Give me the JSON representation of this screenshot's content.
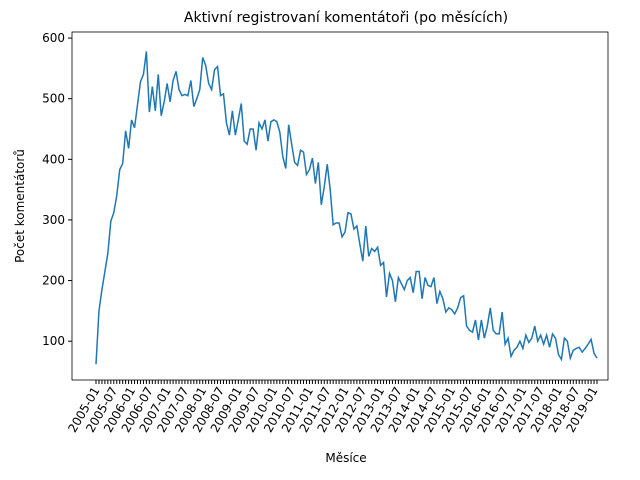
{
  "chart_data": {
    "type": "line",
    "title": "Aktivní registrovaní komentátoři (po měsících)",
    "x_label": "Měsíce",
    "y_label": "Počet komentátorů",
    "categories": [
      "2005-01",
      null,
      null,
      null,
      null,
      null,
      "2005-07",
      null,
      null,
      null,
      null,
      null,
      "2006-01",
      null,
      null,
      null,
      null,
      null,
      "2006-07",
      null,
      null,
      null,
      null,
      null,
      "2007-01",
      null,
      null,
      null,
      null,
      null,
      "2007-07",
      null,
      null,
      null,
      null,
      null,
      "2008-01",
      null,
      null,
      null,
      null,
      null,
      "2008-07",
      null,
      null,
      null,
      null,
      null,
      "2009-01",
      null,
      null,
      null,
      null,
      null,
      "2009-07",
      null,
      null,
      null,
      null,
      null,
      "2010-01",
      null,
      null,
      null,
      null,
      null,
      "2010-07",
      null,
      null,
      null,
      null,
      null,
      "2011-01",
      null,
      null,
      null,
      null,
      null,
      "2011-07",
      null,
      null,
      null,
      null,
      null,
      "2012-01",
      null,
      null,
      null,
      null,
      null,
      "2012-07",
      null,
      null,
      null,
      null,
      null,
      "2013-01",
      null,
      null,
      null,
      null,
      null,
      "2013-07",
      null,
      null,
      null,
      null,
      null,
      "2014-01",
      null,
      null,
      null,
      null,
      null,
      "2014-07",
      null,
      null,
      null,
      null,
      null,
      "2015-01",
      null,
      null,
      null,
      null,
      null,
      "2015-07",
      null,
      null,
      null,
      null,
      null,
      "2016-01",
      null,
      null,
      null,
      null,
      null,
      "2016-07",
      null,
      null,
      null,
      null,
      null,
      "2017-01",
      null,
      null,
      null,
      null,
      null,
      "2017-07",
      null,
      null,
      null,
      null,
      null,
      "2018-01",
      null,
      null,
      null,
      null,
      null,
      "2018-07",
      null,
      null,
      null,
      null,
      null,
      "2019-01",
      null
    ],
    "values": [
      62,
      150,
      185,
      215,
      245,
      298,
      312,
      340,
      383,
      393,
      447,
      418,
      465,
      452,
      490,
      528,
      540,
      578,
      478,
      520,
      480,
      540,
      472,
      495,
      525,
      495,
      530,
      545,
      515,
      505,
      507,
      505,
      530,
      487,
      500,
      515,
      568,
      555,
      525,
      515,
      548,
      553,
      505,
      508,
      460,
      440,
      480,
      440,
      465,
      492,
      430,
      425,
      450,
      450,
      415,
      460,
      450,
      465,
      430,
      462,
      465,
      462,
      445,
      405,
      385,
      457,
      425,
      395,
      390,
      415,
      412,
      375,
      383,
      402,
      360,
      395,
      325,
      355,
      392,
      350,
      292,
      295,
      295,
      272,
      280,
      312,
      310,
      285,
      290,
      260,
      232,
      290,
      240,
      253,
      248,
      255,
      225,
      230,
      173,
      212,
      200,
      165,
      205,
      195,
      185,
      200,
      205,
      180,
      215,
      215,
      170,
      205,
      192,
      190,
      205,
      162,
      182,
      170,
      148,
      155,
      152,
      145,
      155,
      172,
      175,
      125,
      118,
      115,
      135,
      102,
      135,
      105,
      125,
      155,
      118,
      112,
      112,
      148,
      95,
      105,
      75,
      85,
      90,
      100,
      88,
      110,
      98,
      105,
      125,
      100,
      110,
      95,
      110,
      90,
      112,
      105,
      78,
      70,
      105,
      100,
      72,
      85,
      88,
      90,
      82,
      88,
      95,
      103,
      80,
      72
    ],
    "color": "#1f77b4",
    "ylim": [
      36,
      610
    ],
    "yticks": [
      100,
      200,
      300,
      400,
      500,
      600
    ]
  }
}
